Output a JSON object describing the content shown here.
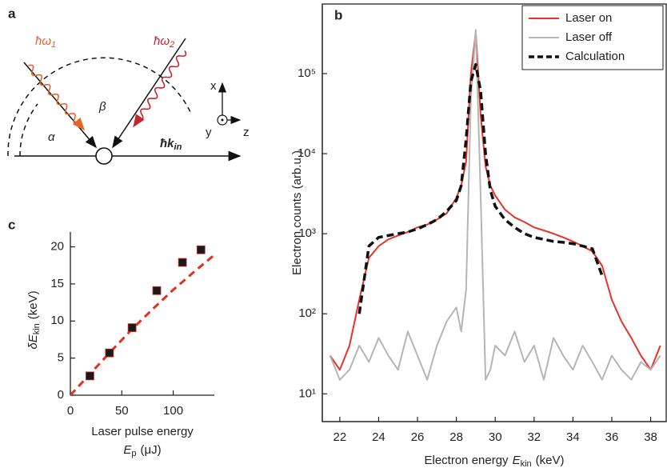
{
  "panel_a": {
    "label": "a",
    "photon_1": "ħω",
    "photon_1_index": "1",
    "photon_2": "ħω",
    "photon_2_index": "2",
    "angle_beta": "β",
    "angle_alpha": "α",
    "axis_x": "x",
    "axis_y": "y",
    "axis_z": "z",
    "momentum": "ħk",
    "momentum_index": "in"
  },
  "chart_data": [
    {
      "type": "scatter",
      "panel_label": "c",
      "x": [
        19,
        38,
        60,
        84,
        109,
        127
      ],
      "values": [
        2.6,
        5.7,
        9.1,
        14.1,
        17.9,
        19.6
      ],
      "color": "#1a1a1a",
      "fit": {
        "x": [
          0,
          20,
          40,
          60,
          80,
          100,
          120,
          140
        ],
        "values": [
          0,
          3,
          6,
          8.9,
          11.6,
          14.2,
          16.6,
          18.9
        ],
        "color": "#e03020"
      },
      "xlim": [
        0,
        140
      ],
      "ylim": [
        0,
        22
      ],
      "xticks": [
        0,
        50,
        100
      ],
      "yticks": [
        0,
        5,
        10,
        15,
        20
      ],
      "x_label": "Laser pulse energy",
      "x_label_symbol": "E",
      "x_label_subscript": "p",
      "x_label_unit": "(μJ)",
      "y_label_symbol": "δE",
      "y_label_subscript": "kin",
      "y_label_unit": "(keV)"
    },
    {
      "type": "line",
      "panel_label": "b",
      "log_y": true,
      "legend": "upper right",
      "x": [
        21.5,
        22,
        22.5,
        23,
        23.5,
        24,
        24.5,
        25,
        25.5,
        26,
        26.5,
        27,
        27.5,
        28,
        28.25,
        28.5,
        28.75,
        29,
        29.25,
        29.5,
        29.75,
        30,
        30.5,
        31,
        31.5,
        32,
        32.5,
        33,
        33.5,
        34,
        34.5,
        35,
        35.5,
        36,
        36.5,
        37,
        37.5,
        38,
        38.5
      ],
      "series": [
        {
          "name": "Laser on",
          "color": "#e8322a",
          "width": 2,
          "dash": false,
          "values": [
            30,
            20,
            40,
            150,
            500,
            700,
            850,
            950,
            1050,
            1200,
            1300,
            1500,
            1800,
            2800,
            4000,
            8000,
            100000,
            330000,
            30000,
            7000,
            4000,
            3000,
            2000,
            1600,
            1400,
            1200,
            1100,
            1000,
            900,
            800,
            700,
            600,
            400,
            150,
            80,
            50,
            30,
            20,
            40
          ]
        },
        {
          "name": "Laser off",
          "color": "#b5b5b5",
          "width": 2,
          "dash": false,
          "values": [
            30,
            15,
            20,
            40,
            25,
            50,
            30,
            20,
            60,
            30,
            15,
            40,
            80,
            120,
            60,
            200,
            50000,
            350000,
            3000,
            15,
            20,
            40,
            30,
            60,
            25,
            40,
            15,
            50,
            30,
            20,
            40,
            25,
            15,
            30,
            20,
            15,
            25,
            20,
            30
          ]
        },
        {
          "name": "Calculation",
          "color": "#111111",
          "width": 3.5,
          "dash": true,
          "values": [
            null,
            null,
            null,
            100,
            700,
            900,
            950,
            1000,
            1050,
            1150,
            1300,
            1500,
            1900,
            2600,
            4000,
            15000,
            80000,
            130000,
            60000,
            10000,
            3500,
            2200,
            1500,
            1200,
            1000,
            900,
            850,
            800,
            780,
            750,
            700,
            650,
            300,
            null,
            null,
            null,
            null,
            null,
            null
          ]
        }
      ],
      "xlim": [
        21.1,
        38.8
      ],
      "ylim": [
        4.5,
        740000
      ],
      "xticks": [
        22,
        24,
        26,
        28,
        30,
        32,
        34,
        36,
        38
      ],
      "yticks": [
        {
          "value": 10,
          "label": "10¹"
        },
        {
          "value": 100,
          "label": "10²"
        },
        {
          "value": 1000,
          "label": "10³"
        },
        {
          "value": 10000,
          "label": "10⁴"
        },
        {
          "value": 100000,
          "label": "10⁵"
        }
      ],
      "y_label": "Electron counts (arb.u.)",
      "x_label": "Electron energy",
      "x_label_symbol": "E",
      "x_label_subscript": "kin",
      "x_label_unit": "(keV)"
    }
  ]
}
